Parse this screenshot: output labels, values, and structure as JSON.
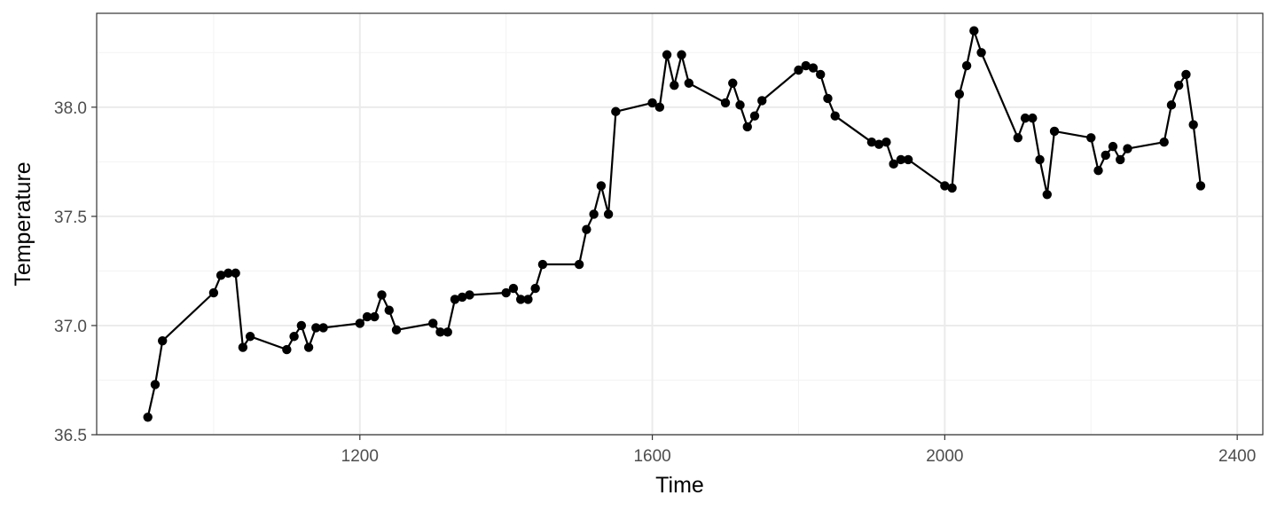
{
  "chart_data": {
    "type": "line",
    "xlabel": "Time",
    "ylabel": "Temperature",
    "xlim": [
      840,
      2435
    ],
    "ylim": [
      36.5,
      38.43
    ],
    "x_ticks": [
      1200,
      1600,
      2000,
      2400
    ],
    "y_ticks": [
      36.5,
      37.0,
      37.5,
      38.0
    ],
    "y_tick_labels": [
      "36.5",
      "37.0",
      "37.5",
      "38.0"
    ],
    "grid": true,
    "legend": "none",
    "colors": {
      "line": "#000000",
      "grid_major": "#ebebeb",
      "grid_minor": "#f3f3f3",
      "panel_border": "#333333"
    },
    "series": [
      {
        "x": [
          910,
          920,
          930,
          1000,
          1010,
          1020,
          1030,
          1040,
          1050,
          1100,
          1110,
          1120,
          1130,
          1140,
          1150,
          1200,
          1210,
          1220,
          1230,
          1240,
          1250,
          1300,
          1310,
          1320,
          1330,
          1340,
          1350,
          1400,
          1410,
          1420,
          1430,
          1440,
          1450,
          1500,
          1510,
          1520,
          1530,
          1540,
          1550,
          1600,
          1610,
          1620,
          1630,
          1640,
          1650,
          1700,
          1710,
          1720,
          1730,
          1740,
          1750,
          1800,
          1810,
          1820,
          1830,
          1840,
          1850,
          1900,
          1910,
          1920,
          1930,
          1940,
          1950,
          2000,
          2010,
          2020,
          2030,
          2040,
          2050,
          2100,
          2110,
          2120,
          2130,
          2140,
          2150,
          2200,
          2210,
          2220,
          2230,
          2240,
          2250,
          2300,
          2310,
          2320,
          2330,
          2340,
          2350
        ],
        "y": [
          36.58,
          36.73,
          36.93,
          37.15,
          37.23,
          37.24,
          37.24,
          36.9,
          36.95,
          36.89,
          36.95,
          37.0,
          36.9,
          36.99,
          36.99,
          37.01,
          37.04,
          37.04,
          37.14,
          37.07,
          36.98,
          37.01,
          36.97,
          36.97,
          37.12,
          37.13,
          37.14,
          37.15,
          37.17,
          37.12,
          37.12,
          37.17,
          37.28,
          37.28,
          37.44,
          37.51,
          37.64,
          37.51,
          37.98,
          38.02,
          38.0,
          38.24,
          38.1,
          38.24,
          38.11,
          38.02,
          38.11,
          38.01,
          37.91,
          37.96,
          38.03,
          38.17,
          38.19,
          38.18,
          38.15,
          38.04,
          37.96,
          37.84,
          37.83,
          37.84,
          37.74,
          37.76,
          37.76,
          37.64,
          37.63,
          38.06,
          38.19,
          38.35,
          38.25,
          37.86,
          37.95,
          37.95,
          37.76,
          37.6,
          37.89,
          37.86,
          37.71,
          37.78,
          37.82,
          37.76,
          37.81,
          37.84,
          38.01,
          38.1,
          38.15,
          37.92,
          37.64
        ]
      }
    ]
  }
}
